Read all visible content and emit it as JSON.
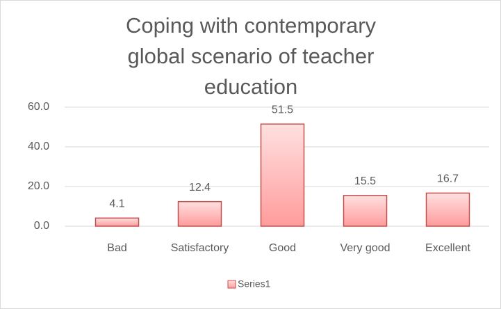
{
  "chart_data": {
    "type": "bar",
    "title": "Coping with contemporary global scenario of teacher education",
    "categories": [
      "Bad",
      "Satisfactory",
      "Good",
      "Very good",
      "Excellent"
    ],
    "series": [
      {
        "name": "Series1",
        "color": "#ff9c9c",
        "values": [
          4.1,
          12.4,
          51.5,
          15.5,
          16.7
        ]
      }
    ],
    "ylim": [
      0,
      60
    ],
    "yticks": [
      {
        "value": 0,
        "label": "0.0"
      },
      {
        "value": 20,
        "label": "20.0"
      },
      {
        "value": 40,
        "label": "40.0"
      },
      {
        "value": 60,
        "label": "60.0"
      }
    ],
    "grid": true,
    "legend": "bottom"
  }
}
